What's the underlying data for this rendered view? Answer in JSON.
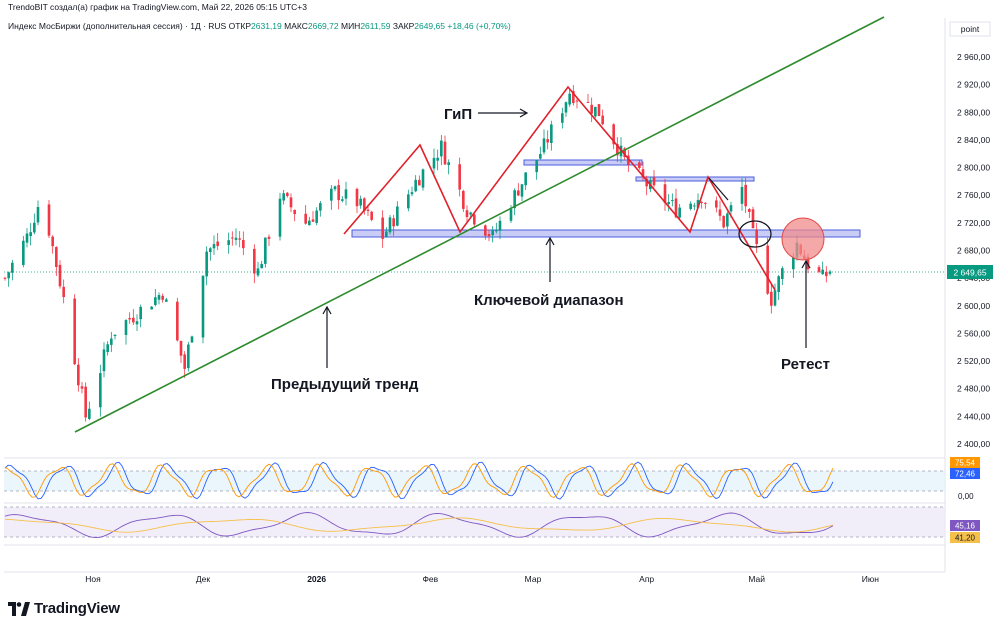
{
  "header": {
    "attribution": "TrendoBIT создал(а) график на TradingView.com, Май 22, 2026 05:15 UTC+3",
    "symbol": "Индекс МосБиржи (дополнительная сессия) · 1Д · RUS",
    "open_label": "ОТКР",
    "open_value": "2631,19",
    "high_label": "МАКС",
    "high_value": "2669,72",
    "low_label": "МИН",
    "low_value": "2611,59",
    "close_label": "ЗАКР",
    "close_value": "2649,65",
    "change_value": "+18,46 (+0,70%)"
  },
  "scale_mode_label": "point",
  "price_axis": {
    "ticks": [
      "2 960,00",
      "2 920,00",
      "2 880,00",
      "2 840,00",
      "2 800,00",
      "2 760,00",
      "2 720,00",
      "2 680,00",
      "2 640,00",
      "2 600,00",
      "2 560,00",
      "2 520,00",
      "2 480,00",
      "2 440,00",
      "2 400,00"
    ],
    "last_price_label": "2 649,65"
  },
  "time_axis": {
    "ticks": [
      "Ноя",
      "Дек",
      "2026",
      "Фев",
      "Мар",
      "Апр",
      "Май",
      "Июн"
    ]
  },
  "oscillator1": {
    "value_a": "75,54",
    "value_b": "72,46",
    "zero_label": "0,00"
  },
  "oscillator2": {
    "value_a": "45,16",
    "value_b": "41,20"
  },
  "annotations": {
    "head_and_shoulders": "ГиП",
    "key_range": "Ключевой диапазон",
    "previous_trend": "Предыдущий тренд",
    "retest": "Ретест"
  },
  "branding": {
    "name": "TradingView"
  },
  "colors": {
    "up": "#089981",
    "down": "#f23645",
    "trendline": "#2e8b2e",
    "pattern": "#e0202a",
    "zone": "#4a5ee0",
    "zone_fill": "#c9ccf5"
  },
  "chart_data": {
    "type": "candlestick",
    "ylim": [
      2400,
      2960
    ],
    "x_range": [
      "2025-10-08",
      "2026-06-20"
    ],
    "last_close": 2649.65,
    "ohlc_anchors": [
      [
        "2025-10-08",
        2640
      ],
      [
        "2025-10-14",
        2700
      ],
      [
        "2025-10-18",
        2760
      ],
      [
        "2025-10-24",
        2610
      ],
      [
        "2025-10-30",
        2440
      ],
      [
        "2025-11-06",
        2560
      ],
      [
        "2025-11-13",
        2590
      ],
      [
        "2025-11-20",
        2620
      ],
      [
        "2025-11-26",
        2510
      ],
      [
        "2025-12-02",
        2680
      ],
      [
        "2025-12-10",
        2700
      ],
      [
        "2025-12-16",
        2650
      ],
      [
        "2025-12-22",
        2760
      ],
      [
        "2025-12-29",
        2720
      ],
      [
        "2026-01-06",
        2765
      ],
      [
        "2026-01-12",
        2750
      ],
      [
        "2026-01-19",
        2700
      ],
      [
        "2026-01-28",
        2780
      ],
      [
        "2026-02-04",
        2830
      ],
      [
        "2026-02-11",
        2740
      ],
      [
        "2026-02-18",
        2700
      ],
      [
        "2026-02-25",
        2770
      ],
      [
        "2026-03-04",
        2830
      ],
      [
        "2026-03-11",
        2910
      ],
      [
        "2026-03-19",
        2880
      ],
      [
        "2026-03-26",
        2810
      ],
      [
        "2026-04-02",
        2770
      ],
      [
        "2026-04-09",
        2740
      ],
      [
        "2026-04-16",
        2760
      ],
      [
        "2026-04-22",
        2720
      ],
      [
        "2026-04-27",
        2770
      ],
      [
        "2026-04-30",
        2700
      ],
      [
        "2026-05-05",
        2610
      ],
      [
        "2026-05-08",
        2650
      ],
      [
        "2026-05-12",
        2690
      ],
      [
        "2026-05-15",
        2660
      ],
      [
        "2026-05-19",
        2640
      ],
      [
        "2026-05-21",
        2650
      ]
    ]
  }
}
